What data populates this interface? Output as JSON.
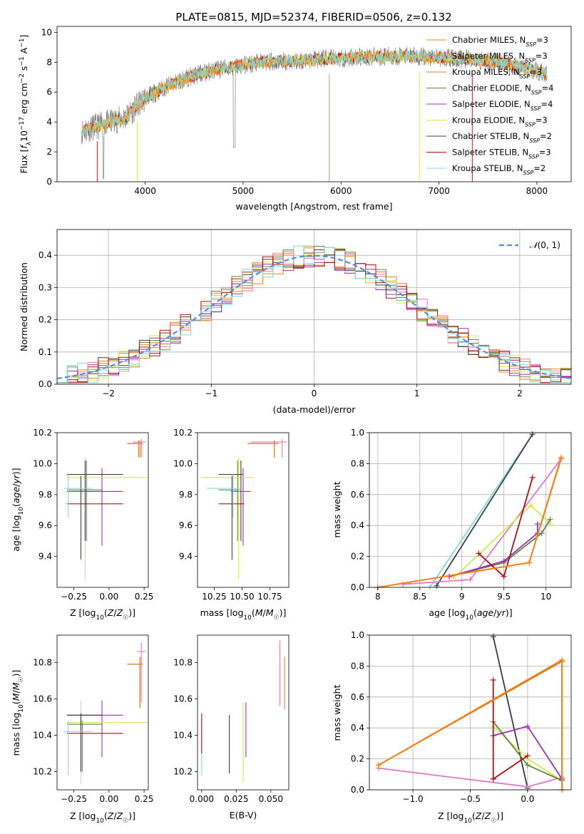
{
  "figure_title": "PLATE=0815, MJD=52374, FIBERID=0506, z=0.132",
  "colors": {
    "chabrier_miles": "#ff7f0e",
    "salpeter_miles": "#e377c2",
    "kroupa_miles": "#c8822e",
    "chabrier_elodie": "#5a8a3c",
    "salpeter_elodie": "#9b30b8",
    "kroupa_elodie": "#d4e84c",
    "chabrier_stelib": "#404040",
    "salpeter_stelib": "#b01010",
    "kroupa_stelib": "#7fd8e0",
    "data_gray": "#808080",
    "normal_curve": "#5b8bd6"
  },
  "chart_data": [
    {
      "id": "spectrum",
      "type": "line",
      "title": "",
      "xlabel": "wavelength [Angstrom, rest frame]",
      "ylabel": "Flux [f_λ10^{-17} erg cm^{-2} s^{-1} A^{-1}]",
      "xlim": [
        3100,
        8350
      ],
      "ylim": [
        0,
        10.4
      ],
      "xticks": [
        4000,
        5000,
        6000,
        7000,
        8000
      ],
      "yticks": [
        0,
        2,
        4,
        6,
        8,
        10
      ],
      "grid": false,
      "legend_position": "right",
      "x_range_data": [
        3350,
        8100
      ],
      "continuum": {
        "x": [
          3350,
          3450,
          3600,
          3800,
          4000,
          4200,
          4400,
          4600,
          4800,
          5000,
          5200,
          5500,
          5800,
          6100,
          6400,
          6700,
          7000,
          7300,
          7600,
          7900,
          8100
        ],
        "y": [
          3.4,
          3.6,
          3.9,
          4.3,
          5.6,
          6.3,
          6.9,
          7.3,
          7.6,
          7.8,
          8.0,
          8.1,
          8.2,
          8.3,
          8.4,
          8.4,
          8.3,
          8.2,
          8.0,
          7.6,
          7.2
        ]
      },
      "legend": [
        {
          "label": "Chabrier MILES, N",
          "sub": "SSP",
          "suffix": "=3",
          "color_key": "chabrier_miles"
        },
        {
          "label": "Salpeter MILES, N",
          "sub": "SSP",
          "suffix": "=3",
          "color_key": "salpeter_miles"
        },
        {
          "label": "Kroupa MILES, N",
          "sub": "SSP",
          "suffix": "=3",
          "color_key": "kroupa_miles"
        },
        {
          "label": "Chabrier ELODIE, N",
          "sub": "SSP",
          "suffix": "=4",
          "color_key": "chabrier_elodie"
        },
        {
          "label": "Salpeter ELODIE, N",
          "sub": "SSP",
          "suffix": "=4",
          "color_key": "salpeter_elodie"
        },
        {
          "label": "Kroupa ELODIE, N",
          "sub": "SSP",
          "suffix": "=3",
          "color_key": "kroupa_elodie"
        },
        {
          "label": "Chabrier STELIB, N",
          "sub": "SSP",
          "suffix": "=2",
          "color_key": "chabrier_stelib"
        },
        {
          "label": "Salpeter STELIB, N",
          "sub": "SSP",
          "suffix": "=3",
          "color_key": "salpeter_stelib"
        },
        {
          "label": "Kroupa STELIB, N",
          "sub": "SSP",
          "suffix": "=2",
          "color_key": "kroupa_stelib"
        }
      ]
    },
    {
      "id": "residuals",
      "type": "histogram",
      "xlabel": "(data-model)/error",
      "ylabel": "Normed distribution",
      "xlim": [
        -2.5,
        2.5
      ],
      "ylim": [
        0,
        0.48
      ],
      "xticks": [
        -2,
        -1,
        0,
        1,
        2
      ],
      "yticks": [
        0.0,
        0.1,
        0.2,
        0.3,
        0.4
      ],
      "grid": true,
      "legend_position": "top-right",
      "legend_label": "N(0,1)",
      "bin_width": 0.1
    },
    {
      "id": "age_vs_Z",
      "type": "errorbar",
      "xlabel": "Z [log10(Z/Z☉)]",
      "ylabel": "age  [log10(age/yr)]",
      "xlim": [
        -0.37,
        0.28
      ],
      "ylim": [
        9.2,
        10.2
      ],
      "xticks": [
        -0.25,
        0.0,
        0.25
      ],
      "xticklabels": [
        "−0.25",
        "0.00",
        "0.25"
      ],
      "yticks": [
        9.4,
        9.6,
        9.8,
        10.0,
        10.2
      ],
      "points": [
        {
          "k": "chabrier_miles",
          "x": 0.22,
          "xe": [
            0.13,
            0.24
          ],
          "y": 10.13,
          "ye": [
            10.04,
            10.15
          ]
        },
        {
          "k": "salpeter_miles",
          "x": 0.23,
          "xe": [
            0.17,
            0.26
          ],
          "y": 10.14,
          "ye": [
            10.04,
            10.16
          ]
        },
        {
          "k": "kroupa_miles",
          "x": 0.21,
          "xe": [
            0.13,
            0.24
          ],
          "y": 10.13,
          "ye": [
            10.04,
            10.15
          ]
        },
        {
          "k": "chabrier_elodie",
          "x": -0.16,
          "xe": [
            -0.3,
            -0.05
          ],
          "y": 9.83,
          "ye": [
            9.5,
            10.02
          ]
        },
        {
          "k": "salpeter_elodie",
          "x": -0.05,
          "xe": [
            -0.3,
            0.1
          ],
          "y": 9.82,
          "ye": [
            9.47,
            9.97
          ]
        },
        {
          "k": "kroupa_elodie",
          "x": -0.17,
          "xe": [
            -0.3,
            0.28
          ],
          "y": 9.91,
          "ye": [
            9.25,
            10.04
          ]
        },
        {
          "k": "chabrier_stelib",
          "x": -0.17,
          "xe": [
            -0.3,
            0.1
          ],
          "y": 9.93,
          "ye": [
            9.5,
            10.02
          ]
        },
        {
          "k": "salpeter_stelib",
          "x": -0.2,
          "xe": [
            -0.3,
            0.1
          ],
          "y": 9.74,
          "ye": [
            9.38,
            9.92
          ]
        },
        {
          "k": "kroupa_stelib",
          "x": -0.29,
          "xe": [
            -0.32,
            -0.12
          ],
          "y": 9.84,
          "ye": [
            9.65,
            9.93
          ]
        }
      ]
    },
    {
      "id": "age_vs_mass",
      "type": "errorbar",
      "xlabel": "mass [log10(M/M☉)]",
      "ylabel": "",
      "xlim": [
        10.1,
        10.92
      ],
      "ylim": [
        9.2,
        10.2
      ],
      "xticks": [
        10.25,
        10.5,
        10.75
      ],
      "xticklabels": [
        "10.25",
        "10.50",
        "10.75"
      ],
      "yticks": [
        9.4,
        9.6,
        9.8,
        10.0,
        10.2
      ],
      "points": [
        {
          "k": "chabrier_miles",
          "x": 10.79,
          "xe": [
            10.55,
            10.83
          ],
          "y": 10.13,
          "ye": [
            10.04,
            10.15
          ]
        },
        {
          "k": "salpeter_miles",
          "x": 10.86,
          "xe": [
            10.58,
            10.9
          ],
          "y": 10.14,
          "ye": [
            10.04,
            10.16
          ]
        },
        {
          "k": "kroupa_miles",
          "x": 10.79,
          "xe": [
            10.55,
            10.83
          ],
          "y": 10.13,
          "ye": [
            10.04,
            10.15
          ]
        },
        {
          "k": "chabrier_elodie",
          "x": 10.46,
          "xe": [
            10.29,
            10.48
          ],
          "y": 9.83,
          "ye": [
            9.5,
            10.02
          ]
        },
        {
          "k": "salpeter_elodie",
          "x": 10.51,
          "xe": [
            10.4,
            10.58
          ],
          "y": 9.82,
          "ye": [
            9.47,
            9.97
          ]
        },
        {
          "k": "kroupa_elodie",
          "x": 10.47,
          "xe": [
            10.13,
            10.6
          ],
          "y": 9.91,
          "ye": [
            9.25,
            10.04
          ]
        },
        {
          "k": "chabrier_stelib",
          "x": 10.49,
          "xe": [
            10.29,
            10.51
          ],
          "y": 9.93,
          "ye": [
            9.5,
            10.02
          ]
        },
        {
          "k": "salpeter_stelib",
          "x": 10.41,
          "xe": [
            10.29,
            10.52
          ],
          "y": 9.74,
          "ye": [
            9.38,
            9.92
          ]
        },
        {
          "k": "kroupa_stelib",
          "x": 10.42,
          "xe": [
            10.18,
            10.48
          ],
          "y": 9.84,
          "ye": [
            9.65,
            9.93
          ]
        }
      ]
    },
    {
      "id": "weight_vs_age",
      "type": "line",
      "xlabel": "age  [log10(age/yr)]",
      "ylabel": "mass weight",
      "xlim": [
        7.9,
        10.3
      ],
      "ylim": [
        0,
        1
      ],
      "xticks": [
        8.0,
        8.5,
        9.0,
        9.5,
        10.0
      ],
      "yticks": [
        0.0,
        0.2,
        0.4,
        0.6,
        0.8,
        1.0
      ],
      "grid": true,
      "series": [
        {
          "k": "kroupa_stelib",
          "x": [
            8.62,
            9.84
          ],
          "y": [
            0.0,
            0.99
          ]
        },
        {
          "k": "chabrier_stelib",
          "x": [
            8.7,
            9.84
          ],
          "y": [
            0.01,
            0.99
          ]
        },
        {
          "k": "salpeter_miles",
          "x": [
            8.3,
            9.1,
            10.18
          ],
          "y": [
            0.02,
            0.05,
            0.83
          ]
        },
        {
          "k": "kroupa_elodie",
          "x": [
            8.9,
            9.82,
            10.05
          ],
          "y": [
            0.06,
            0.53,
            0.41
          ]
        },
        {
          "k": "chabrier_elodie",
          "x": [
            8.85,
            9.5,
            9.95,
            10.05
          ],
          "y": [
            0.07,
            0.16,
            0.35,
            0.44
          ]
        },
        {
          "k": "salpeter_elodie",
          "x": [
            8.85,
            9.5,
            9.9,
            9.9
          ],
          "y": [
            0.07,
            0.17,
            0.35,
            0.41
          ]
        },
        {
          "k": "salpeter_stelib",
          "x": [
            9.2,
            9.5,
            9.84
          ],
          "y": [
            0.22,
            0.07,
            0.71
          ]
        },
        {
          "k": "kroupa_miles",
          "x": [
            8.0,
            9.8,
            10.18
          ],
          "y": [
            0.0,
            0.16,
            0.83
          ]
        },
        {
          "k": "chabrier_miles",
          "x": [
            8.0,
            9.8,
            10.18
          ],
          "y": [
            0.0,
            0.16,
            0.84
          ]
        }
      ]
    },
    {
      "id": "mass_vs_Z",
      "type": "errorbar",
      "xlabel": "Z [log10(Z/Z☉)]",
      "ylabel": "mass [log10(M/M☉)]",
      "xlim": [
        -0.37,
        0.28
      ],
      "ylim": [
        10.1,
        10.95
      ],
      "xticks": [
        -0.25,
        0.0,
        0.25
      ],
      "xticklabels": [
        "−0.25",
        "0.00",
        "0.25"
      ],
      "yticks": [
        10.2,
        10.4,
        10.6,
        10.8
      ],
      "points": [
        {
          "k": "chabrier_miles",
          "x": 0.22,
          "xe": [
            0.13,
            0.24
          ],
          "y": 10.79,
          "ye": [
            10.55,
            10.83
          ]
        },
        {
          "k": "salpeter_miles",
          "x": 0.23,
          "xe": [
            0.2,
            0.26
          ],
          "y": 10.86,
          "ye": [
            10.58,
            10.91
          ]
        },
        {
          "k": "kroupa_miles",
          "x": 0.22,
          "xe": [
            0.13,
            0.24
          ],
          "y": 10.79,
          "ye": [
            10.55,
            10.83
          ]
        },
        {
          "k": "chabrier_elodie",
          "x": -0.19,
          "xe": [
            -0.3,
            -0.05
          ],
          "y": 10.46,
          "ye": [
            10.2,
            10.48
          ]
        },
        {
          "k": "salpeter_elodie",
          "x": -0.05,
          "xe": [
            -0.3,
            0.1
          ],
          "y": 10.51,
          "ye": [
            10.28,
            10.59
          ]
        },
        {
          "k": "kroupa_elodie",
          "x": -0.2,
          "xe": [
            -0.3,
            0.28
          ],
          "y": 10.47,
          "ye": [
            10.13,
            10.59
          ]
        },
        {
          "k": "chabrier_stelib",
          "x": -0.2,
          "xe": [
            -0.3,
            -0.05
          ],
          "y": 10.51,
          "ye": [
            10.2,
            10.51
          ]
        },
        {
          "k": "salpeter_stelib",
          "x": -0.2,
          "xe": [
            -0.3,
            0.1
          ],
          "y": 10.41,
          "ye": [
            10.2,
            10.52
          ]
        },
        {
          "k": "kroupa_stelib",
          "x": -0.29,
          "xe": [
            -0.32,
            -0.12
          ],
          "y": 10.42,
          "ye": [
            10.18,
            10.48
          ]
        }
      ]
    },
    {
      "id": "mass_vs_ebv",
      "type": "errorbar",
      "xlabel": "E(B-V)",
      "ylabel": "",
      "xlim": [
        -0.003,
        0.063
      ],
      "ylim": [
        10.1,
        10.95
      ],
      "xticks": [
        0.0,
        0.025,
        0.05
      ],
      "xticklabels": [
        "0.000",
        "0.025",
        "0.050"
      ],
      "yticks": [
        10.2,
        10.4,
        10.6,
        10.8
      ],
      "points": [
        {
          "k": "kroupa_stelib",
          "x": 0.0,
          "y": 10.35,
          "ye": [
            10.18,
            10.5
          ]
        },
        {
          "k": "salpeter_stelib",
          "x": 0.0,
          "y": 10.42,
          "ye": [
            10.3,
            10.52
          ]
        },
        {
          "k": "chabrier_stelib",
          "x": 0.02,
          "y": 10.35,
          "ye": [
            10.19,
            10.51
          ]
        },
        {
          "k": "kroupa_elodie",
          "x": 0.03,
          "y": 10.4,
          "ye": [
            10.14,
            10.58
          ]
        },
        {
          "k": "salpeter_elodie",
          "x": 0.032,
          "y": 10.44,
          "ye": [
            10.28,
            10.58
          ]
        },
        {
          "k": "salpeter_miles",
          "x": 0.0565,
          "y": 10.74,
          "ye": [
            10.56,
            10.92
          ]
        },
        {
          "k": "chabrier_miles",
          "x": 0.06,
          "y": 10.68,
          "ye": [
            10.54,
            10.83
          ]
        }
      ]
    },
    {
      "id": "weight_vs_Z",
      "type": "line",
      "xlabel": "Z [log10(Z/Z☉)]",
      "ylabel": "mass weight",
      "xlim": [
        -1.38,
        0.38
      ],
      "ylim": [
        0,
        1
      ],
      "xticks": [
        -1.0,
        -0.5,
        0.0
      ],
      "xticklabels": [
        "−1.0",
        "−0.5",
        "0.0"
      ],
      "yticks": [
        0.0,
        0.2,
        0.4,
        0.6,
        0.8,
        1.0
      ],
      "grid": true,
      "series": [
        {
          "k": "kroupa_stelib",
          "x": [
            -0.3,
            0.0
          ],
          "y": [
            0.99,
            0.01
          ]
        },
        {
          "k": "chabrier_stelib",
          "x": [
            -0.3,
            0.0
          ],
          "y": [
            0.99,
            0.01
          ]
        },
        {
          "k": "salpeter_miles",
          "x": [
            -1.3,
            0.0,
            0.3,
            0.3,
            0.3
          ],
          "y": [
            0.14,
            0.02,
            0.08,
            0.83,
            0.83
          ]
        },
        {
          "k": "kroupa_elodie",
          "x": [
            -0.3,
            0.0,
            0.3
          ],
          "y": [
            0.41,
            0.2,
            0.06
          ]
        },
        {
          "k": "chabrier_elodie",
          "x": [
            -0.3,
            0.0,
            0.3
          ],
          "y": [
            0.44,
            0.16,
            0.06
          ]
        },
        {
          "k": "salpeter_elodie",
          "x": [
            -0.3,
            0.0,
            0.3
          ],
          "y": [
            0.35,
            0.41,
            0.07
          ]
        },
        {
          "k": "salpeter_stelib",
          "x": [
            -0.3,
            -0.3,
            0.0,
            -0.3
          ],
          "y": [
            0.71,
            0.07,
            0.22,
            0.07
          ]
        },
        {
          "k": "kroupa_miles",
          "x": [
            -1.3,
            0.3,
            0.3
          ],
          "y": [
            0.16,
            0.83,
            0.0
          ]
        },
        {
          "k": "chabrier_miles",
          "x": [
            -1.3,
            0.3,
            0.3
          ],
          "y": [
            0.16,
            0.84,
            0.0
          ]
        }
      ]
    }
  ]
}
